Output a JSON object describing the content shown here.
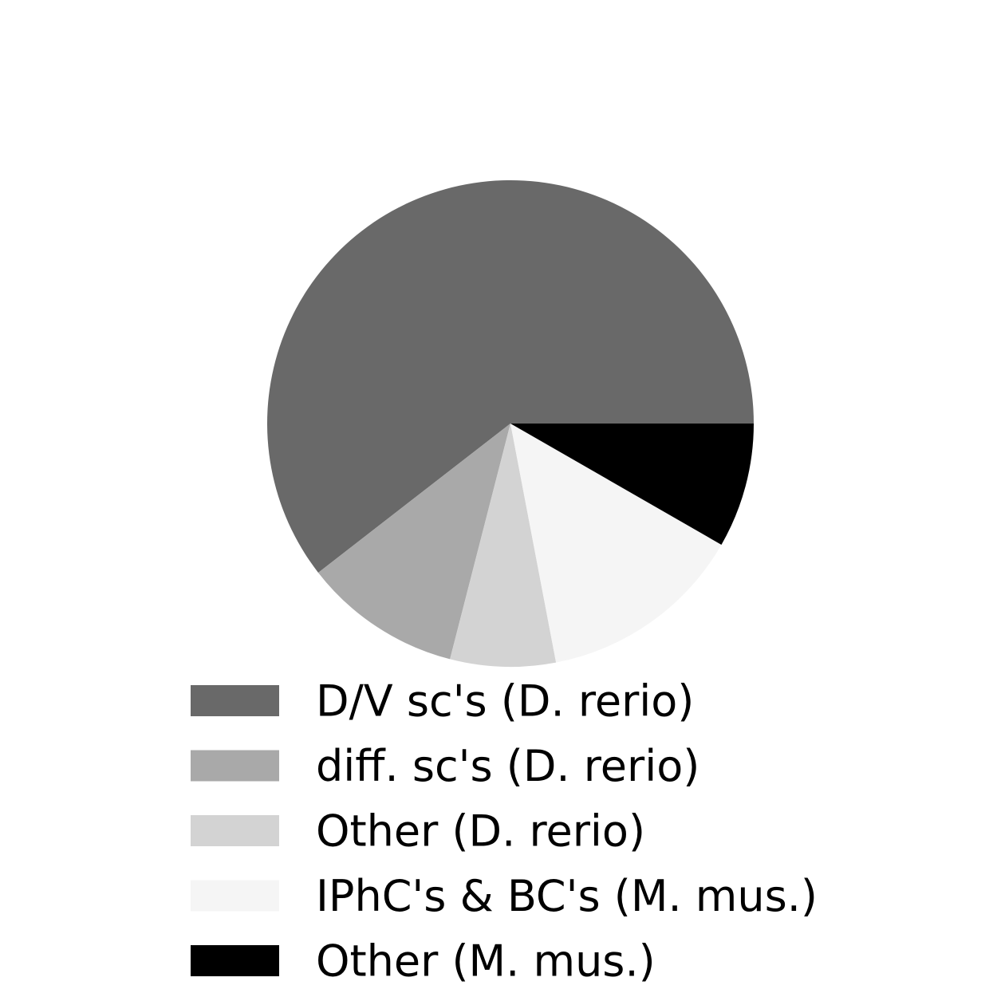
{
  "chart_data": {
    "type": "pie",
    "title": "",
    "slices": [
      {
        "label": "D/V sc's (D. rerio)",
        "value": 60.5,
        "color": "#696969"
      },
      {
        "label": "diff. sc's (D. rerio)",
        "value": 10.5,
        "color": "#a9a9a9"
      },
      {
        "label": "Other (D. rerio)",
        "value": 7.0,
        "color": "#d3d3d3"
      },
      {
        "label": "IPhC's & BC's (M. mus.)",
        "value": 13.7,
        "color": "#f5f5f5"
      },
      {
        "label": "Other (M. mus.)",
        "value": 8.3,
        "color": "#000000"
      }
    ],
    "start_angle_deg": 0,
    "direction": "counterclockwise",
    "legend_placement": "bottom"
  }
}
